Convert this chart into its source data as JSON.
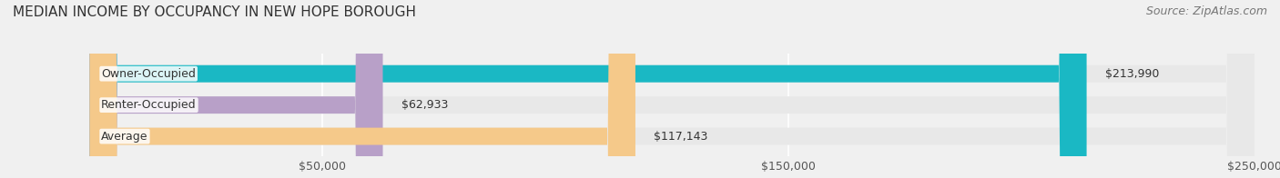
{
  "title": "MEDIAN INCOME BY OCCUPANCY IN NEW HOPE BOROUGH",
  "source": "Source: ZipAtlas.com",
  "categories": [
    "Owner-Occupied",
    "Renter-Occupied",
    "Average"
  ],
  "values": [
    213990,
    62933,
    117143
  ],
  "bar_colors": [
    "#1ab8c4",
    "#b8a0c8",
    "#f5c98a"
  ],
  "bar_labels": [
    "$213,990",
    "$62,933",
    "$117,143"
  ],
  "xlim": [
    0,
    250000
  ],
  "xticks": [
    50000,
    150000,
    250000
  ],
  "xticklabels": [
    "$50,000",
    "$150,000",
    "$250,000"
  ],
  "background_color": "#f0f0f0",
  "bar_bg_color": "#e8e8e8",
  "title_fontsize": 11,
  "source_fontsize": 9,
  "label_fontsize": 9,
  "bar_height": 0.55,
  "figsize": [
    14.06,
    1.96
  ]
}
